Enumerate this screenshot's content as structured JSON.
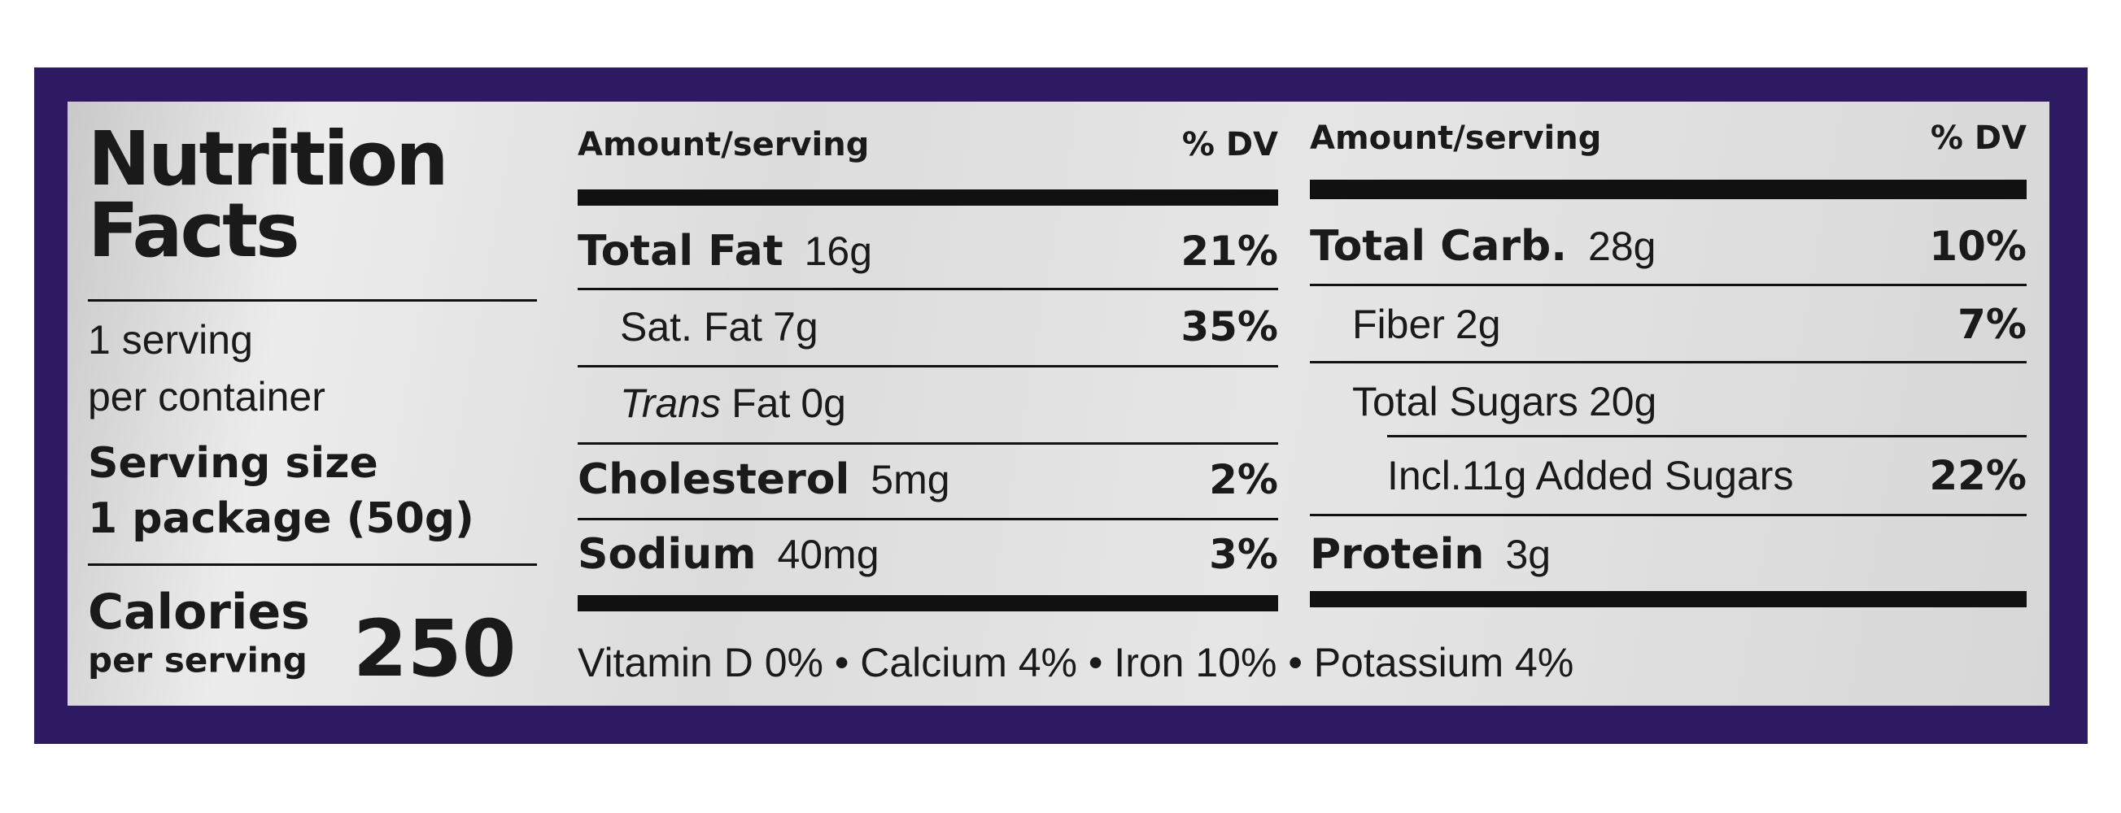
{
  "panel": {
    "title": "Nutrition Facts",
    "servings": [
      "1 serving",
      "per container"
    ],
    "serving_size_label": "Serving size",
    "serving_size": "1 package (50g)",
    "calories_label": "Calories",
    "calories_sub": "per serving",
    "calories": "250"
  },
  "columns": [
    {
      "header_amount": "Amount/serving",
      "header_dv": "% DV",
      "rows": [
        {
          "level": 0,
          "name": "Total Fat",
          "amount": "16g",
          "dv": "21%"
        },
        {
          "level": 1,
          "name": "Sat. Fat",
          "amount": "7g",
          "dv": "35%"
        },
        {
          "level": 1,
          "name_italic": "Trans",
          "name": "Fat",
          "amount": "0g"
        },
        {
          "level": 0,
          "name": "Cholesterol",
          "amount": "5mg",
          "dv": "2%"
        },
        {
          "level": 0,
          "name": "Sodium",
          "amount": "40mg",
          "dv": "3%"
        }
      ]
    },
    {
      "header_amount": "Amount/serving",
      "header_dv": "% DV",
      "rows": [
        {
          "level": 0,
          "name": "Total Carb.",
          "amount": "28g",
          "dv": "10%"
        },
        {
          "level": 1,
          "name": "Fiber",
          "amount": "2g",
          "dv": "7%"
        },
        {
          "level": 1,
          "name": "Total Sugars",
          "amount": "20g"
        },
        {
          "level": 2,
          "name": "Incl.11g Added Sugars",
          "dv": "22%"
        },
        {
          "level": 0,
          "name": "Protein",
          "amount": "3g"
        }
      ]
    }
  ],
  "footer": "Vitamin D 0% • Calcium 4% • Iron 10% • Potassium 4%"
}
